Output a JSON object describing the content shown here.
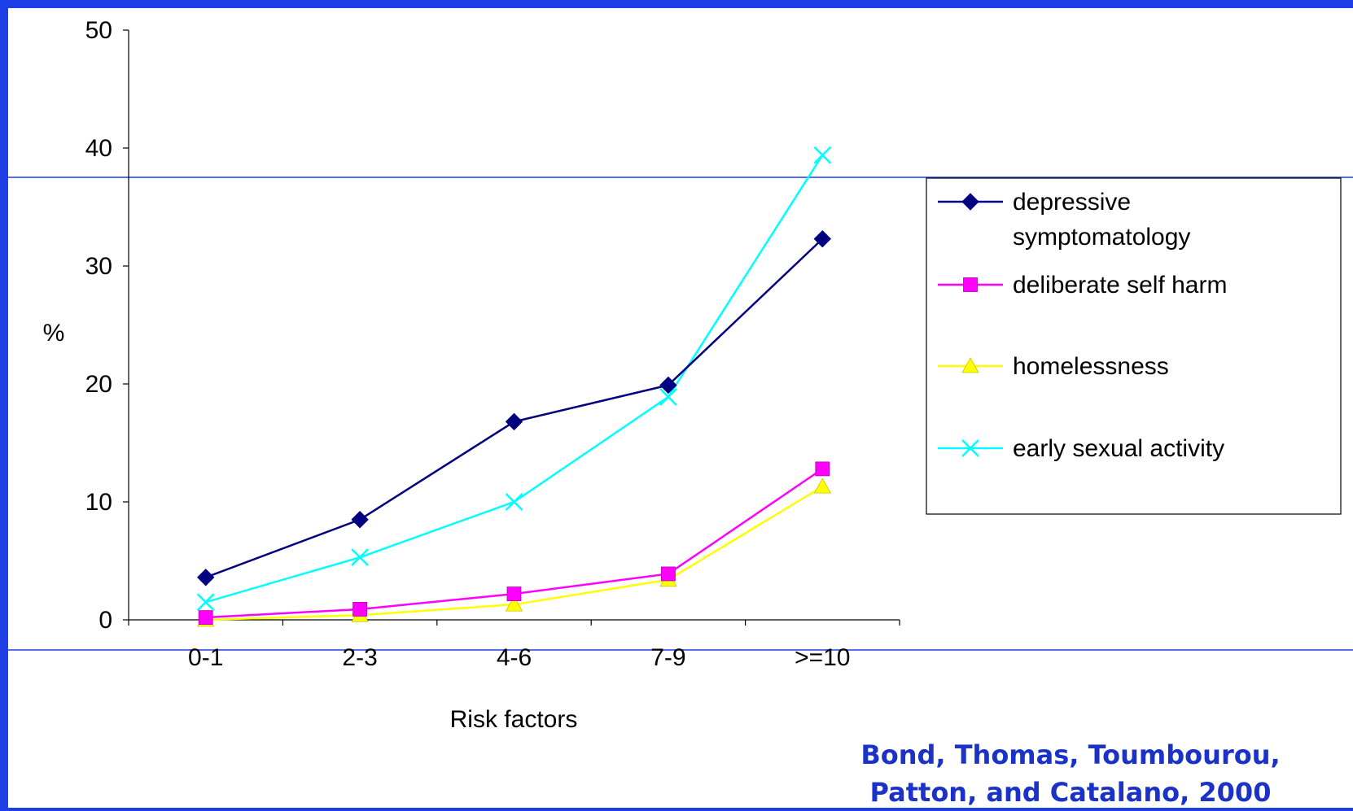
{
  "chart_data": {
    "type": "line",
    "categories": [
      "0-1",
      "2-3",
      "4-6",
      "7-9",
      ">=10"
    ],
    "xlabel": "Risk factors",
    "ylabel": "%",
    "ylim": [
      0,
      50
    ],
    "yticks": [
      0,
      10,
      20,
      30,
      40,
      50
    ],
    "grid": false,
    "legend_position": "right",
    "series": [
      {
        "name_lines": [
          "depressive",
          "symptomatology"
        ],
        "name": "depressive symptomatology",
        "color": "#000080",
        "marker": "diamond",
        "values": [
          3.6,
          8.5,
          16.8,
          19.9,
          32.3
        ]
      },
      {
        "name_lines": [
          "deliberate self harm"
        ],
        "name": "deliberate self harm",
        "color": "#ff00ff",
        "marker": "square",
        "values": [
          0.2,
          0.9,
          2.2,
          3.9,
          12.8
        ]
      },
      {
        "name_lines": [
          "homelessness"
        ],
        "name": "homelessness",
        "color": "#ffff00",
        "marker": "triangle",
        "values": [
          0.0,
          0.4,
          1.3,
          3.4,
          11.3
        ]
      },
      {
        "name_lines": [
          "early sexual activity"
        ],
        "name": "early sexual activity",
        "color": "#00ffff",
        "marker": "x",
        "values": [
          1.5,
          5.3,
          10.0,
          18.9,
          39.4
        ]
      }
    ]
  },
  "citation": {
    "line1": "Bond, Thomas,  Toumbourou,",
    "line2": "Patton, and Catalano, 2000"
  },
  "colors": {
    "background": "#ffffff",
    "frame": "#1e3ee8",
    "citation": "#1a32c8"
  }
}
